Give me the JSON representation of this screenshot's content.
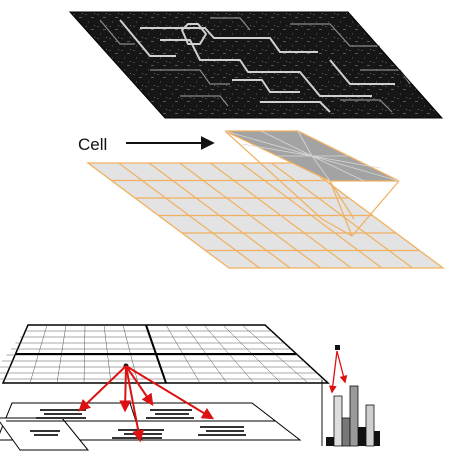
{
  "diagram": {
    "cell_label": "Cell",
    "colors": {
      "grid_line": "#f0b060",
      "grid_fill": "#e3e3e3",
      "cell_fill": "#9e9e9e",
      "arrow_red": "#dd1111",
      "ink": "#111111",
      "edge_image_bg": "#161616"
    },
    "icons": [
      "arrow-right-icon"
    ]
  }
}
